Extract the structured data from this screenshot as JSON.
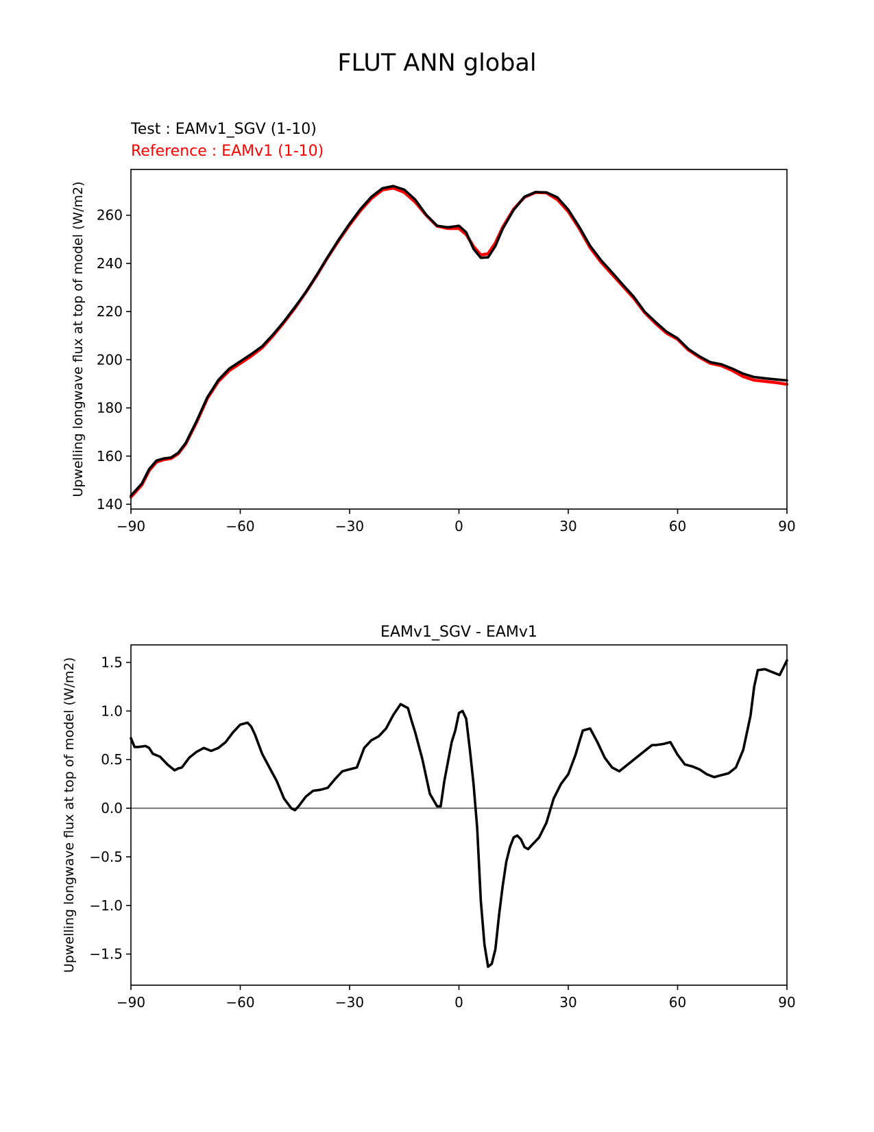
{
  "figure": {
    "title": "FLUT ANN global",
    "test_label": "Test : EAMv1_SGV (1-10)",
    "ref_label": "Reference : EAMv1 (1-10)"
  },
  "chart_data": [
    {
      "type": "line",
      "title": "",
      "xlabel": "",
      "ylabel": "Upwelling longwave flux at top of model (W/m2)",
      "xlim": [
        -90,
        90
      ],
      "ylim": [
        138,
        279
      ],
      "xticks": [
        -90,
        -60,
        -30,
        0,
        30,
        60,
        90
      ],
      "xtick_labels": [
        "−90",
        "−60",
        "−30",
        "0",
        "30",
        "60",
        "90"
      ],
      "yticks": [
        140,
        160,
        180,
        200,
        220,
        240,
        260
      ],
      "ytick_labels": [
        "140",
        "160",
        "180",
        "200",
        "220",
        "240",
        "260"
      ],
      "series": [
        {
          "name": "Reference : EAMv1 (1-10)",
          "color": "#ff0000",
          "x": [
            -90,
            -87,
            -85,
            -83,
            -81,
            -79,
            -77,
            -75,
            -72,
            -69,
            -66,
            -63,
            -60,
            -57,
            -54,
            -51,
            -48,
            -45,
            -42,
            -39,
            -36,
            -33,
            -30,
            -27,
            -24,
            -21,
            -18,
            -15,
            -12,
            -9,
            -6,
            -3,
            0,
            2,
            4,
            6,
            8,
            10,
            12,
            15,
            18,
            21,
            24,
            27,
            30,
            33,
            36,
            39,
            42,
            45,
            48,
            51,
            54,
            57,
            60,
            63,
            66,
            69,
            72,
            75,
            78,
            81,
            84,
            87,
            90
          ],
          "values": [
            143,
            148,
            154,
            157.5,
            158.5,
            159,
            161,
            165,
            174,
            184,
            191,
            195.5,
            198.5,
            201.5,
            205,
            210,
            215.5,
            221.5,
            228,
            235,
            242.5,
            249.5,
            256,
            262,
            267,
            270.5,
            271.3,
            269.5,
            265.5,
            260,
            255.5,
            254.5,
            254.5,
            252,
            247,
            243.5,
            244,
            248.5,
            255,
            262.5,
            267.5,
            269.5,
            269.3,
            266.5,
            261.5,
            254.5,
            246.5,
            240.5,
            235.5,
            230.5,
            225.5,
            219.5,
            215,
            211,
            208.5,
            204,
            201,
            198.5,
            197.5,
            195.5,
            193,
            191.5,
            191,
            190.5,
            189.8
          ]
        },
        {
          "name": "Test : EAMv1_SGV (1-10)",
          "color": "#000000",
          "x": [
            -90,
            -87,
            -85,
            -83,
            -81,
            -79,
            -77,
            -75,
            -72,
            -69,
            -66,
            -63,
            -60,
            -57,
            -54,
            -51,
            -48,
            -45,
            -42,
            -39,
            -36,
            -33,
            -30,
            -27,
            -24,
            -21,
            -18,
            -15,
            -12,
            -9,
            -6,
            -3,
            0,
            2,
            4,
            6,
            8,
            10,
            12,
            15,
            18,
            21,
            24,
            27,
            30,
            33,
            36,
            39,
            42,
            45,
            48,
            51,
            54,
            57,
            60,
            63,
            66,
            69,
            72,
            75,
            78,
            81,
            84,
            87,
            90
          ],
          "values": [
            143.6,
            148.6,
            154.6,
            158.1,
            159,
            159.4,
            161.4,
            165.4,
            174.5,
            184.5,
            191.6,
            196.3,
            199.3,
            202.3,
            205.6,
            210.5,
            215.9,
            221.9,
            228.1,
            235.2,
            242.7,
            249.9,
            256.5,
            262.6,
            267.7,
            271.2,
            272.1,
            270.6,
            266.5,
            260.2,
            255.6,
            255,
            255.6,
            252.9,
            246,
            242.3,
            242.5,
            247.2,
            254.3,
            262.2,
            267.7,
            269.6,
            269.5,
            267.4,
            262.3,
            255.2,
            247.3,
            241.3,
            236.3,
            231.1,
            226.1,
            219.9,
            215.6,
            211.6,
            208.9,
            204.4,
            201.4,
            199,
            198.1,
            196.3,
            194.2,
            192.8,
            192.3,
            191.8,
            191.4
          ]
        }
      ]
    },
    {
      "type": "line",
      "title": "EAMv1_SGV - EAMv1",
      "xlabel": "",
      "ylabel": "Upwelling longwave flux at top of model (W/m2)",
      "xlim": [
        -90,
        90
      ],
      "ylim": [
        -1.82,
        1.68
      ],
      "xticks": [
        -90,
        -60,
        -30,
        0,
        30,
        60,
        90
      ],
      "xtick_labels": [
        "−90",
        "−60",
        "−30",
        "0",
        "30",
        "60",
        "90"
      ],
      "yticks": [
        -1.5,
        -1.0,
        -0.5,
        0.0,
        0.5,
        1.0,
        1.5
      ],
      "ytick_labels": [
        "−1.5",
        "−1.0",
        "−0.5",
        "0.0",
        "0.5",
        "1.0",
        "1.5"
      ],
      "zero_line_color": "#808080",
      "series": [
        {
          "name": "EAMv1_SGV - EAMv1",
          "color": "#000000",
          "x": [
            -90,
            -89,
            -88,
            -86,
            -85,
            -84,
            -82,
            -80,
            -78,
            -77,
            -76,
            -74,
            -72,
            -70,
            -68,
            -66,
            -64,
            -62,
            -60,
            -58,
            -57,
            -56,
            -54,
            -52,
            -50,
            -48,
            -46,
            -45,
            -44,
            -42,
            -40,
            -38,
            -36,
            -34,
            -32,
            -30,
            -28,
            -26,
            -24,
            -22,
            -20,
            -18,
            -16,
            -14,
            -13,
            -12,
            -10,
            -8,
            -6,
            -5,
            -4,
            -2,
            -1,
            0,
            1,
            2,
            3,
            4,
            5,
            6,
            7,
            8,
            9,
            10,
            11,
            12,
            13,
            14,
            15,
            16,
            17,
            18,
            19,
            20,
            22,
            24,
            26,
            28,
            30,
            32,
            33,
            34,
            36,
            38,
            40,
            42,
            44,
            46,
            48,
            50,
            52,
            53,
            54,
            56,
            58,
            60,
            62,
            64,
            66,
            68,
            70,
            72,
            74,
            76,
            78,
            80,
            81,
            82,
            84,
            86,
            88,
            90
          ],
          "values": [
            0.72,
            0.63,
            0.63,
            0.64,
            0.62,
            0.56,
            0.53,
            0.45,
            0.39,
            0.41,
            0.42,
            0.52,
            0.58,
            0.62,
            0.59,
            0.62,
            0.68,
            0.78,
            0.86,
            0.88,
            0.84,
            0.76,
            0.56,
            0.42,
            0.28,
            0.1,
            0.0,
            -0.02,
            0.02,
            0.12,
            0.18,
            0.19,
            0.21,
            0.3,
            0.38,
            0.4,
            0.42,
            0.62,
            0.7,
            0.74,
            0.82,
            0.96,
            1.07,
            1.03,
            0.9,
            0.78,
            0.5,
            0.15,
            0.02,
            0.02,
            0.28,
            0.68,
            0.8,
            0.98,
            1.0,
            0.92,
            0.6,
            0.25,
            -0.2,
            -0.95,
            -1.4,
            -1.63,
            -1.6,
            -1.45,
            -1.1,
            -0.8,
            -0.55,
            -0.4,
            -0.3,
            -0.28,
            -0.32,
            -0.4,
            -0.42,
            -0.38,
            -0.3,
            -0.15,
            0.1,
            0.25,
            0.35,
            0.55,
            0.68,
            0.8,
            0.82,
            0.68,
            0.52,
            0.42,
            0.38,
            0.44,
            0.5,
            0.56,
            0.62,
            0.65,
            0.65,
            0.66,
            0.68,
            0.55,
            0.45,
            0.43,
            0.4,
            0.35,
            0.32,
            0.34,
            0.36,
            0.42,
            0.6,
            0.95,
            1.25,
            1.42,
            1.43,
            1.4,
            1.37,
            1.52
          ]
        }
      ]
    }
  ]
}
